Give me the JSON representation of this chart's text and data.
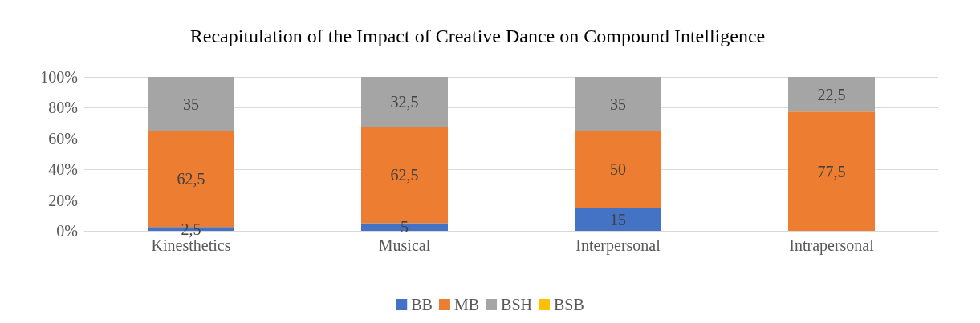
{
  "chart_data": {
    "type": "bar",
    "title": "Recapitulation of the Impact of Creative Dance on Compound Intelligence",
    "categories": [
      "Kinesthetics",
      "Musical",
      "Interpersonal",
      "Intrapersonal"
    ],
    "stacked": true,
    "series": [
      {
        "name": "BB",
        "color": "#4472c4",
        "values": [
          2.5,
          5,
          15,
          0
        ],
        "value_labels": [
          "2,5",
          "5",
          "15",
          null
        ]
      },
      {
        "name": "MB",
        "color": "#ed7d31",
        "values": [
          62.5,
          62.5,
          50,
          77.5
        ],
        "value_labels": [
          "62,5",
          "62,5",
          "50",
          "77,5"
        ]
      },
      {
        "name": "BSH",
        "color": "#a5a5a5",
        "values": [
          35,
          32.5,
          35,
          22.5
        ],
        "value_labels": [
          "35",
          "32,5",
          "35",
          "22,5"
        ]
      },
      {
        "name": "BSB",
        "color": "#ffc000",
        "values": [
          0,
          0,
          0,
          0
        ]
      }
    ],
    "ylim": [
      0,
      100
    ],
    "yticks": [
      {
        "value": 0,
        "label": "0%"
      },
      {
        "value": 20,
        "label": "20%"
      },
      {
        "value": 40,
        "label": "40%"
      },
      {
        "value": 60,
        "label": "60%"
      },
      {
        "value": 80,
        "label": "80%"
      },
      {
        "value": 100,
        "label": "100%"
      }
    ],
    "grid": "y",
    "legend": "bottom"
  }
}
